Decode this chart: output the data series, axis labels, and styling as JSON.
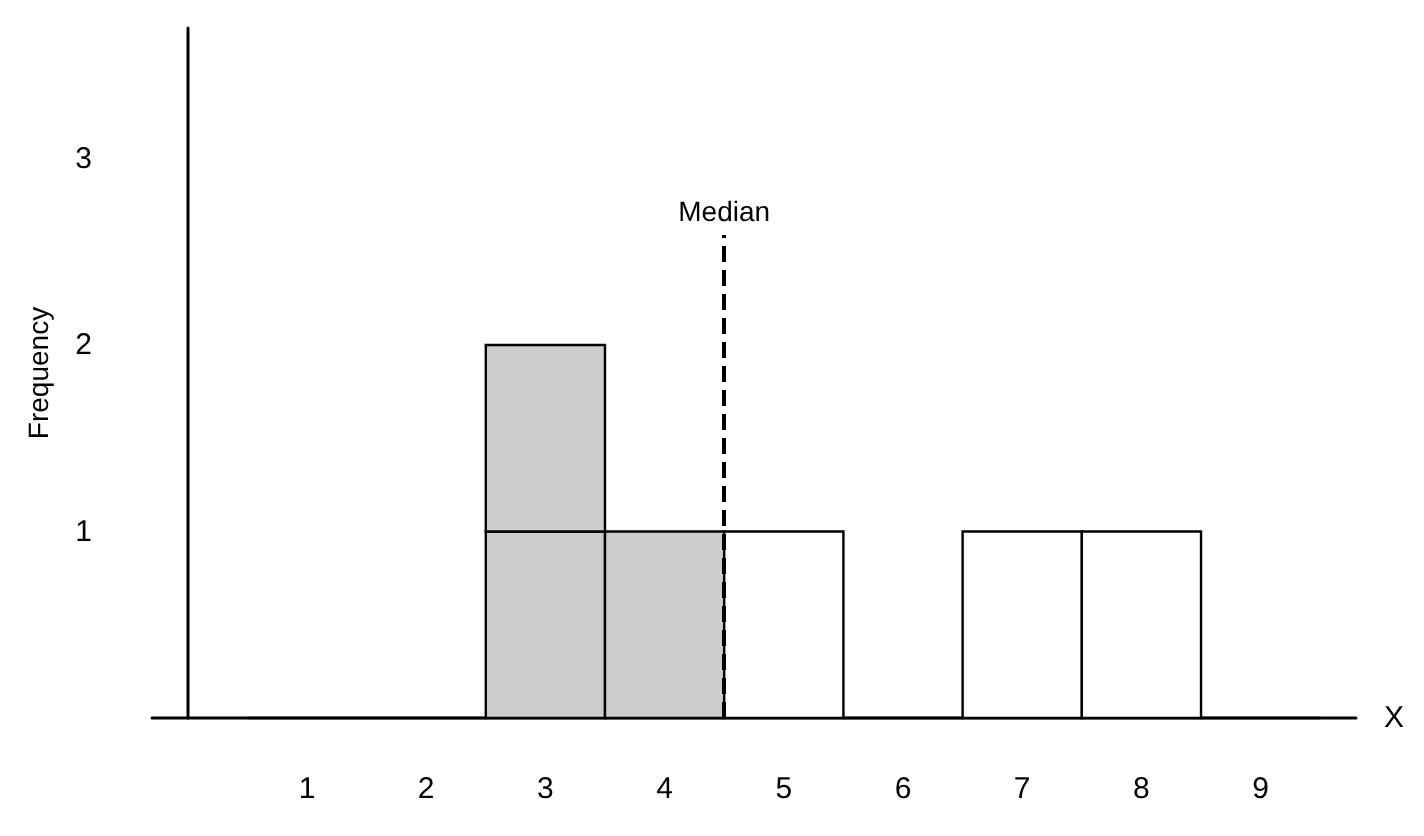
{
  "chart_data": {
    "type": "bar",
    "stacked": true,
    "xlabel": "X",
    "ylabel": "Frequency",
    "x": [
      1,
      2,
      3,
      4,
      5,
      6,
      7,
      8,
      9
    ],
    "series": [
      {
        "colors": [
          "#000000",
          "#000000",
          "#cccccc",
          "#cccccc",
          "#ffffff",
          "#000000",
          "#ffffff",
          "#ffffff",
          "#000000"
        ],
        "values": [
          0,
          0,
          1,
          1,
          1,
          0,
          1,
          1,
          0
        ]
      },
      {
        "color": "#cccccc",
        "values": [
          null,
          null,
          1,
          null,
          null,
          null,
          null,
          null,
          null
        ]
      }
    ],
    "xlim": [
      -0.3,
      9.8
    ],
    "xticks": [
      1,
      2,
      3,
      4,
      5,
      6,
      7,
      8,
      9
    ],
    "ylim": [
      0,
      3.7
    ],
    "yticks": [
      1,
      2,
      3
    ],
    "ref_lines": [
      {
        "axis": "x",
        "value": 4.5,
        "label": "Median",
        "color": "#000000",
        "line_style": "dashed"
      }
    ],
    "grid": false
  }
}
